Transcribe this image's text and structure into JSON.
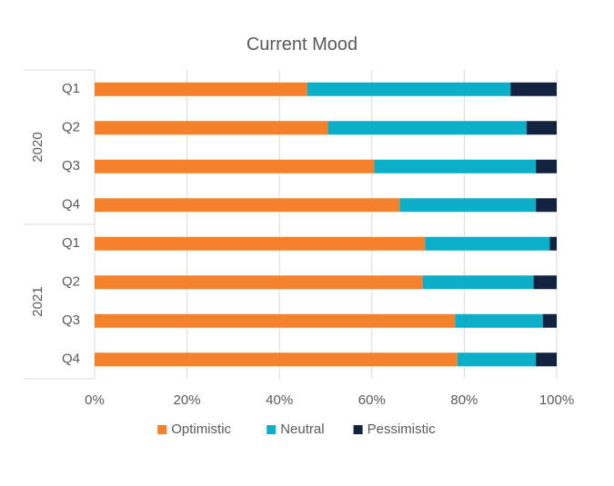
{
  "chart_data": {
    "type": "bar",
    "orientation": "horizontal",
    "stacking": "percent",
    "title": "Current Mood",
    "groups": [
      {
        "label": "2020",
        "categories": [
          "Q1",
          "Q2",
          "Q3",
          "Q4"
        ]
      },
      {
        "label": "2021",
        "categories": [
          "Q1",
          "Q2",
          "Q3",
          "Q4"
        ]
      }
    ],
    "series": [
      {
        "name": "Optimistic",
        "color": "#F5822A",
        "values": [
          46,
          50.5,
          60.5,
          66,
          71.5,
          71,
          78,
          78.5
        ]
      },
      {
        "name": "Neutral",
        "color": "#0BAFC7",
        "values": [
          44,
          43,
          35,
          29.5,
          27,
          24,
          19,
          17
        ]
      },
      {
        "name": "Pessimistic",
        "color": "#13233F",
        "values": [
          10,
          6.5,
          4.5,
          4.5,
          1.5,
          5,
          3,
          4.5
        ]
      }
    ],
    "x_ticks": [
      "0%",
      "20%",
      "40%",
      "60%",
      "80%",
      "100%"
    ],
    "xlim": [
      0,
      100
    ],
    "grid": true,
    "legend_position": "bottom"
  }
}
